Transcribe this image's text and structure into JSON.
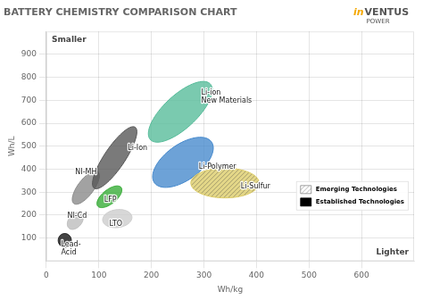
{
  "chart_data": {
    "type": "ellipse",
    "title": "BATTERY CHEMISTRY COMPARISON CHART",
    "xlabel": "Wh/kg",
    "ylabel": "Wh/L",
    "xlim": [
      0,
      700
    ],
    "ylim": [
      0,
      1000
    ],
    "xticks": [
      0,
      100,
      200,
      300,
      400,
      500,
      600
    ],
    "yticks": [
      100,
      200,
      300,
      400,
      500,
      600,
      700,
      800,
      900
    ],
    "grid": true,
    "legend": "lower right",
    "series": [
      {
        "name": "Lead-\nAcid",
        "cx": 35,
        "cy": 90,
        "width": 25,
        "height": 60,
        "angle": 0,
        "label_x": 28,
        "label_y": 55,
        "color": "#111111"
      },
      {
        "name": "NI-Cd",
        "cx": 55,
        "cy": 175,
        "width": 28,
        "height": 75,
        "angle": -10,
        "label_x": 40,
        "label_y": 195,
        "color": "#bbbbbb"
      },
      {
        "name": "NI-MH",
        "cx": 75,
        "cy": 320,
        "width": 35,
        "height": 150,
        "angle": -15,
        "label_x": 55,
        "label_y": 385,
        "color": "#888888"
      },
      {
        "name": "LTO",
        "cx": 135,
        "cy": 185,
        "width": 55,
        "height": 80,
        "angle": -10,
        "label_x": 120,
        "label_y": 160,
        "color": "#cccccc"
      },
      {
        "name": "LFP",
        "cx": 120,
        "cy": 280,
        "width": 35,
        "height": 100,
        "angle": -20,
        "label_x": 110,
        "label_y": 265,
        "color": "#33aa33"
      },
      {
        "name": "Li-Ion",
        "cx": 130,
        "cy": 450,
        "width": 45,
        "height": 280,
        "angle": -15,
        "label_x": 155,
        "label_y": 490,
        "color": "#555555"
      },
      {
        "name": "Li-ion\nNew Materials",
        "cx": 255,
        "cy": 650,
        "width": 80,
        "height": 280,
        "angle": -20,
        "label_x": 295,
        "label_y": 715,
        "color": "#55bb99"
      },
      {
        "name": "Li-Polymer",
        "cx": 260,
        "cy": 430,
        "width": 90,
        "height": 230,
        "angle": -20,
        "label_x": 290,
        "label_y": 410,
        "color": "#4488cc"
      },
      {
        "name": "Li-Sulfur",
        "cx": 340,
        "cy": 340,
        "width": 130,
        "height": 130,
        "angle": -20,
        "label_x": 370,
        "label_y": 325,
        "color": "#ddcc66",
        "marker": "hatch"
      }
    ],
    "legend_entries": [
      {
        "name": "Emerging Technologies",
        "marker": "hatch"
      },
      {
        "name": "Established Technologies",
        "color": "#000000"
      }
    ],
    "annotations": [
      {
        "text": "Lighter",
        "axis": "x"
      },
      {
        "text": "Smaller",
        "axis": "y"
      }
    ],
    "logo": [
      "in",
      "VENTUS",
      "POWER"
    ]
  }
}
